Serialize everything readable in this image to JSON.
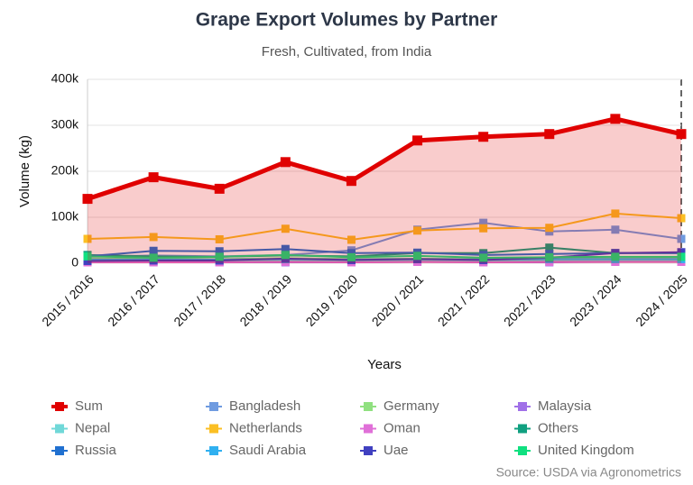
{
  "chart_data": {
    "type": "line",
    "title": "Grape Export Volumes by Partner",
    "subtitle": "Fresh, Cultivated, from India",
    "x_label": "Years",
    "y_label": "Volume (kg)",
    "source": "Source: USDA via Agronometrics",
    "categories": [
      "2015 / 2016",
      "2016 / 2017",
      "2017 / 2018",
      "2018 / 2019",
      "2019 / 2020",
      "2020 / 2021",
      "2021 / 2022",
      "2022 / 2023",
      "2023 / 2024",
      "2024 / 2025"
    ],
    "ylim": [
      0,
      400000
    ],
    "yticks": [
      0,
      {
        "value": 100000,
        "label": "100k"
      },
      {
        "value": 200000,
        "label": "200k"
      },
      {
        "value": 300000,
        "label": "300k"
      },
      {
        "value": 400000,
        "label": "400k"
      }
    ],
    "grid": true,
    "series": [
      {
        "name": "Sum",
        "color": "#e00000",
        "area": true,
        "values": [
          140000,
          187000,
          162000,
          220000,
          179000,
          267000,
          275000,
          281000,
          314000,
          281000
        ]
      },
      {
        "name": "Bangladesh",
        "color": "#6f9be0",
        "values": [
          14000,
          17000,
          15000,
          18000,
          28000,
          73000,
          88000,
          69000,
          73000,
          53000
        ]
      },
      {
        "name": "Germany",
        "color": "#90e080",
        "values": [
          10000,
          10000,
          9000,
          11000,
          9000,
          10000,
          9000,
          10000,
          10000,
          11000
        ]
      },
      {
        "name": "Malaysia",
        "color": "#a070e8",
        "values": [
          2000,
          2000,
          2000,
          2000,
          2000,
          3000,
          2000,
          2000,
          3000,
          3000
        ]
      },
      {
        "name": "Nepal",
        "color": "#70d8d8",
        "values": [
          5000,
          5000,
          5000,
          6000,
          5000,
          6000,
          5000,
          6000,
          6000,
          6000
        ]
      },
      {
        "name": "Netherlands",
        "color": "#fbbf24",
        "values": [
          53000,
          57000,
          52000,
          75000,
          51000,
          71000,
          76000,
          77000,
          108000,
          98000
        ]
      },
      {
        "name": "Oman",
        "color": "#e070d8",
        "values": [
          2000,
          2000,
          2000,
          3000,
          2000,
          3000,
          2000,
          3000,
          3000,
          3000
        ]
      },
      {
        "name": "Others",
        "color": "#10a080",
        "values": [
          18000,
          15000,
          14000,
          17000,
          15000,
          22000,
          22000,
          34000,
          22000,
          22000
        ]
      },
      {
        "name": "Russia",
        "color": "#2070d0",
        "values": [
          15000,
          27000,
          26000,
          31000,
          22000,
          23000,
          18000,
          20000,
          22000,
          22000
        ]
      },
      {
        "name": "Saudi Arabia",
        "color": "#30b0f0",
        "values": [
          8000,
          8000,
          8000,
          9000,
          8000,
          9000,
          8000,
          9000,
          9000,
          9000
        ]
      },
      {
        "name": "Uae",
        "color": "#4040c0",
        "values": [
          5000,
          6000,
          6000,
          10000,
          7000,
          9000,
          7000,
          12000,
          22000,
          24000
        ]
      },
      {
        "name": "United Kingdom",
        "color": "#10e080",
        "values": [
          15000,
          12000,
          14000,
          18000,
          13000,
          16000,
          12000,
          13000,
          14000,
          14000
        ]
      }
    ]
  }
}
